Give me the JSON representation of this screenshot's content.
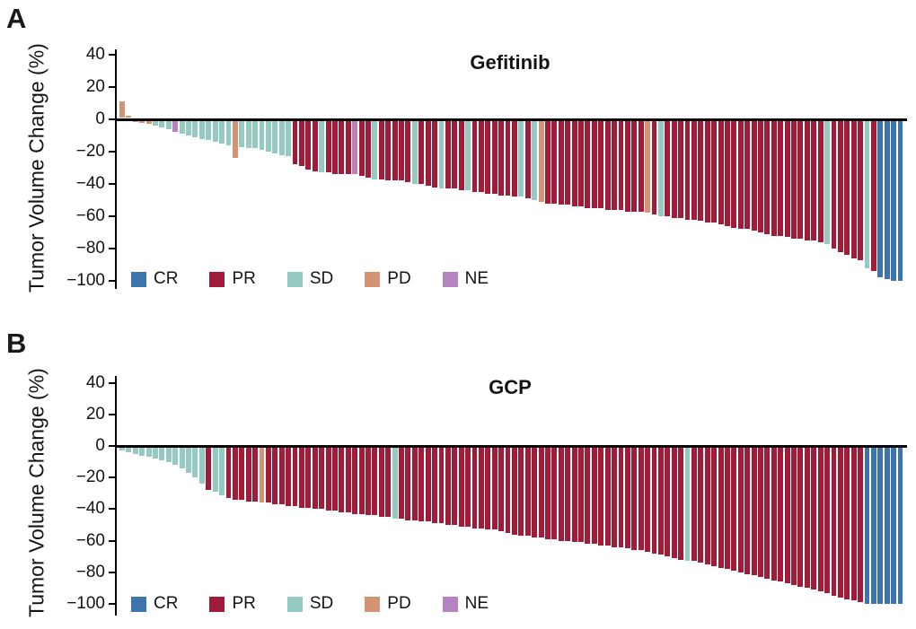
{
  "colors": {
    "CR": "#3d74ab",
    "PR": "#a01c38",
    "SD": "#94cac2",
    "PD": "#d39476",
    "NE": "#b782c1",
    "axis": "#000000",
    "background": "#ffffff"
  },
  "chart_data": [
    {
      "type": "bar",
      "subtype": "waterfall",
      "panel_label": "A",
      "title": "Gefitinib",
      "ylabel": "Tumor Volume Change (%)",
      "xlabel": "",
      "ylim": [
        -100,
        45
      ],
      "yticks": [
        40,
        20,
        0,
        -20,
        -40,
        -60,
        -80,
        -100
      ],
      "grid": false,
      "legend": [
        "CR",
        "PR",
        "SD",
        "PD",
        "NE"
      ],
      "legend_position": "bottom-left",
      "n_bars": 118,
      "values": [
        11,
        2,
        -1,
        -2,
        -3,
        -4,
        -5,
        -6,
        -8,
        -9,
        -10,
        -11,
        -12,
        -13,
        -14,
        -15,
        -16,
        -24,
        -17,
        -18,
        -18,
        -19,
        -20,
        -21,
        -22,
        -23,
        -28,
        -29,
        -31,
        -32,
        -33,
        -33,
        -34,
        -34,
        -34,
        -34,
        -35,
        -36,
        -37,
        -37,
        -38,
        -38,
        -38,
        -39,
        -40,
        -40,
        -41,
        -42,
        -43,
        -43,
        -43,
        -44,
        -44,
        -45,
        -45,
        -46,
        -46,
        -47,
        -47,
        -48,
        -48,
        -49,
        -50,
        -51,
        -52,
        -52,
        -53,
        -53,
        -54,
        -54,
        -55,
        -55,
        -55,
        -56,
        -56,
        -56,
        -57,
        -57,
        -57,
        -58,
        -59,
        -60,
        -60,
        -61,
        -61,
        -62,
        -62,
        -63,
        -64,
        -64,
        -65,
        -66,
        -67,
        -68,
        -68,
        -69,
        -70,
        -71,
        -72,
        -72,
        -73,
        -74,
        -74,
        -75,
        -75,
        -76,
        -77,
        -80,
        -82,
        -84,
        -86,
        -87,
        -92,
        -94,
        -98,
        -99,
        -100,
        -100
      ],
      "responses": [
        "PD",
        "PD",
        "PD",
        "PD",
        "PD",
        "SD",
        "SD",
        "SD",
        "NE",
        "SD",
        "SD",
        "SD",
        "SD",
        "SD",
        "SD",
        "SD",
        "SD",
        "PD",
        "SD",
        "SD",
        "SD",
        "SD",
        "SD",
        "SD",
        "SD",
        "SD",
        "PR",
        "PR",
        "PR",
        "PR",
        "SD",
        "PR",
        "PR",
        "PR",
        "PR",
        "NE",
        "PR",
        "PR",
        "SD",
        "PR",
        "PR",
        "PR",
        "PR",
        "PR",
        "SD",
        "PR",
        "PR",
        "PR",
        "SD",
        "PR",
        "PR",
        "PR",
        "SD",
        "PR",
        "PR",
        "PR",
        "PR",
        "PR",
        "PR",
        "PR",
        "SD",
        "PR",
        "SD",
        "PD",
        "PR",
        "PR",
        "PR",
        "PR",
        "PR",
        "PR",
        "PR",
        "PR",
        "PR",
        "PR",
        "PR",
        "PR",
        "PR",
        "PR",
        "PR",
        "PD",
        "PR",
        "SD",
        "PR",
        "PR",
        "PR",
        "PR",
        "PR",
        "PR",
        "PR",
        "PR",
        "PR",
        "PR",
        "PR",
        "PR",
        "PR",
        "PR",
        "PR",
        "PR",
        "PR",
        "PR",
        "PR",
        "PR",
        "PR",
        "PR",
        "PR",
        "PR",
        "SD",
        "PR",
        "PR",
        "PR",
        "PR",
        "PR",
        "SD",
        "PR",
        "CR",
        "CR",
        "CR",
        "CR"
      ]
    },
    {
      "type": "bar",
      "subtype": "waterfall",
      "panel_label": "B",
      "title": "GCP",
      "ylabel": "Tumor Volume Change (%)",
      "xlabel": "",
      "ylim": [
        -100,
        45
      ],
      "yticks": [
        40,
        20,
        0,
        -20,
        -40,
        -60,
        -80,
        -100
      ],
      "grid": false,
      "legend": [
        "CR",
        "PR",
        "SD",
        "PD",
        "NE"
      ],
      "legend_position": "bottom-left",
      "n_bars": 118,
      "values": [
        -3,
        -4,
        -5,
        -6,
        -7,
        -8,
        -9,
        -10,
        -12,
        -14,
        -17,
        -20,
        -24,
        -28,
        -29,
        -31,
        -33,
        -34,
        -34,
        -35,
        -35,
        -36,
        -36,
        -37,
        -37,
        -38,
        -38,
        -39,
        -39,
        -40,
        -40,
        -41,
        -41,
        -42,
        -42,
        -43,
        -43,
        -44,
        -44,
        -45,
        -45,
        -46,
        -46,
        -47,
        -47,
        -48,
        -48,
        -49,
        -49,
        -50,
        -50,
        -51,
        -51,
        -52,
        -52,
        -53,
        -53,
        -54,
        -55,
        -56,
        -57,
        -57,
        -58,
        -58,
        -59,
        -59,
        -60,
        -60,
        -61,
        -61,
        -62,
        -62,
        -63,
        -63,
        -64,
        -64,
        -65,
        -66,
        -66,
        -67,
        -68,
        -69,
        -70,
        -71,
        -72,
        -73,
        -73,
        -74,
        -75,
        -76,
        -77,
        -78,
        -79,
        -80,
        -81,
        -82,
        -83,
        -84,
        -85,
        -86,
        -87,
        -88,
        -89,
        -90,
        -91,
        -92,
        -93,
        -95,
        -96,
        -97,
        -98,
        -99,
        -100,
        -100,
        -100,
        -100,
        -100,
        -100
      ],
      "responses": [
        "SD",
        "SD",
        "SD",
        "SD",
        "SD",
        "SD",
        "SD",
        "SD",
        "SD",
        "SD",
        "SD",
        "SD",
        "SD",
        "PR",
        "SD",
        "SD",
        "PR",
        "PR",
        "PR",
        "PR",
        "PR",
        "PD",
        "PR",
        "PR",
        "PR",
        "PR",
        "PR",
        "PR",
        "PR",
        "PR",
        "PR",
        "PR",
        "PR",
        "PR",
        "PR",
        "PR",
        "PR",
        "PR",
        "PR",
        "PR",
        "PR",
        "SD",
        "PR",
        "PR",
        "PR",
        "PR",
        "PR",
        "PR",
        "PR",
        "PR",
        "PR",
        "PR",
        "PR",
        "PR",
        "PR",
        "PR",
        "PR",
        "PR",
        "PR",
        "PR",
        "PR",
        "PR",
        "PR",
        "PR",
        "PR",
        "PR",
        "PR",
        "PR",
        "PR",
        "PR",
        "PR",
        "PR",
        "PR",
        "PR",
        "PR",
        "PR",
        "PR",
        "PR",
        "PR",
        "PR",
        "PR",
        "PR",
        "PR",
        "PR",
        "PR",
        "SD",
        "PR",
        "PR",
        "PR",
        "PR",
        "PR",
        "PR",
        "PR",
        "PR",
        "PR",
        "PR",
        "PR",
        "PR",
        "PR",
        "PR",
        "PR",
        "PR",
        "PR",
        "PR",
        "PR",
        "PR",
        "PR",
        "PR",
        "PR",
        "PR",
        "PR",
        "PR",
        "CR",
        "CR",
        "CR",
        "CR",
        "CR",
        "CR"
      ]
    }
  ]
}
